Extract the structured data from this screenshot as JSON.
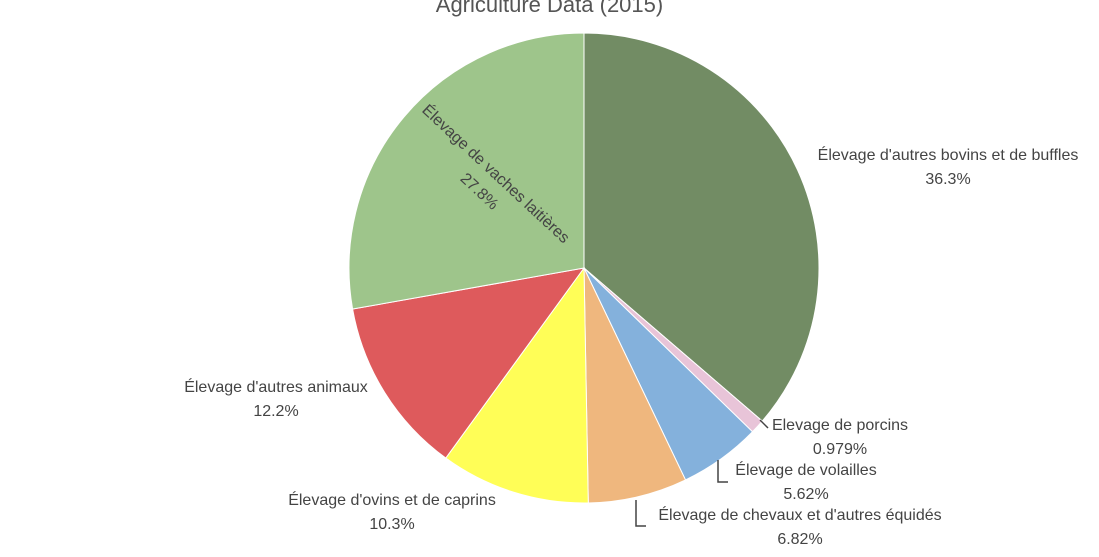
{
  "chart_data": {
    "type": "pie",
    "title": "Agriculture Data (2015)",
    "slices": [
      {
        "label": "Élevage d'autres bovins et de buffles",
        "value": 36.3,
        "percent_label": "36.3%",
        "color": "#728c64"
      },
      {
        "label": "Elevage de porcins",
        "value": 0.979,
        "percent_label": "0.979%",
        "color": "#e8c4d8"
      },
      {
        "label": "Élevage de volailles",
        "value": 5.62,
        "percent_label": "5.62%",
        "color": "#84b1dc"
      },
      {
        "label": "Élevage de chevaux et d'autres équidés",
        "value": 6.82,
        "percent_label": "6.82%",
        "color": "#efb77e"
      },
      {
        "label": "Élevage d'ovins et de caprins",
        "value": 10.3,
        "percent_label": "10.3%",
        "color": "#fffe57"
      },
      {
        "label": "Élevage d'autres animaux",
        "value": 12.2,
        "percent_label": "12.2%",
        "color": "#de5a5c"
      },
      {
        "label": "Élevage de vaches laitières",
        "value": 27.8,
        "percent_label": "27.8%",
        "color": "#9ec58b"
      }
    ]
  }
}
